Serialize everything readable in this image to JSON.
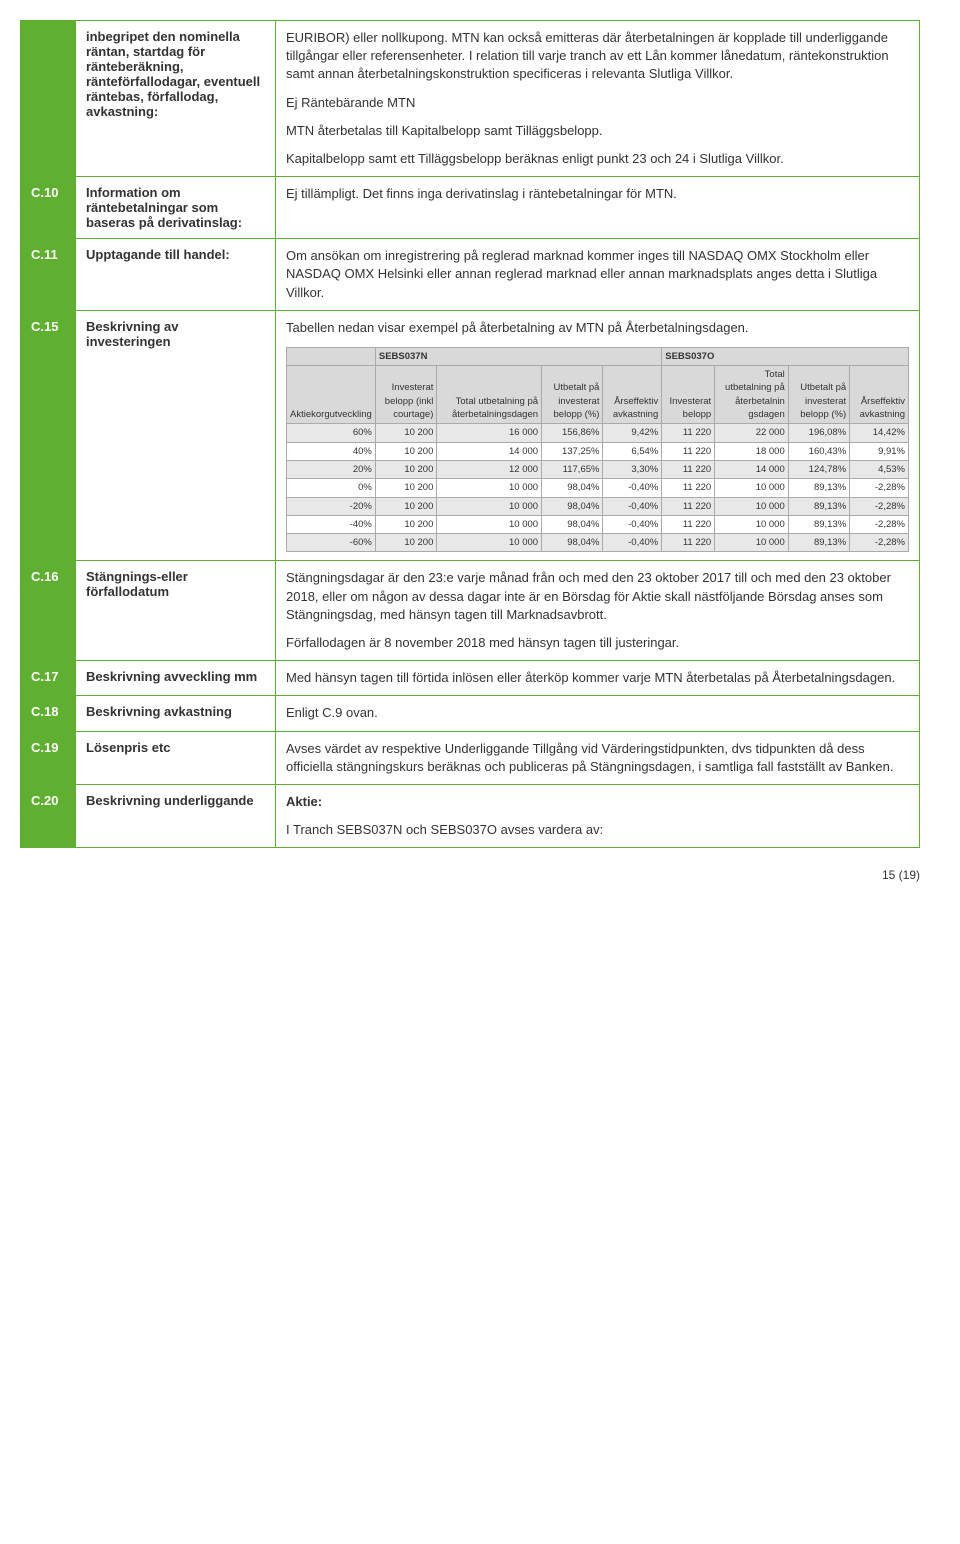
{
  "rows": {
    "first": {
      "label": "inbegripet den nominella räntan, startdag för ränteberäkning, ränteförfallodagar, eventuell räntebas, förfallodag, avkastning:",
      "p1": "EURIBOR) eller nollkupong. MTN kan också emitteras där återbetalningen är kopplade till underliggande tillgångar eller referensenheter. I relation till varje tranch av ett Lån kommer lånedatum, räntekonstruktion samt annan återbetalningskonstruktion specificeras i relevanta Slutliga Villkor.",
      "p2": "Ej Räntebärande MTN",
      "p3": "MTN återbetalas till Kapitalbelopp samt Tilläggsbelopp.",
      "p4": "Kapitalbelopp samt ett Tilläggsbelopp beräknas enligt punkt 23 och 24 i Slutliga Villkor."
    },
    "c10": {
      "id": "C.10",
      "label": "Information om räntebetalningar som baseras på derivatinslag:",
      "content": "Ej tillämpligt. Det finns inga derivatinslag i räntebetalningar för MTN."
    },
    "c11": {
      "id": "C.11",
      "label": "Upptagande till handel:",
      "content": "Om ansökan om inregistrering på reglerad marknad kommer inges till NASDAQ OMX Stockholm eller NASDAQ OMX Helsinki eller annan reglerad marknad eller annan marknadsplats anges detta i Slutliga Villkor."
    },
    "c15": {
      "id": "C.15",
      "label": "Beskrivning av investeringen",
      "p1": "Tabellen nedan visar exempel på återbetalning av MTN på Återbetalningsdagen."
    },
    "c16": {
      "id": "C.16",
      "label": "Stängnings-eller förfallodatum",
      "p1": "Stängningsdagar är den 23:e varje månad från och med den 23 oktober 2017 till och med den 23 oktober 2018, eller om någon av dessa dagar inte är en Börsdag för Aktie skall nästföljande Börsdag anses som Stängningsdag, med hänsyn tagen till Marknadsavbrott.",
      "p2": "Förfallodagen är 8 november 2018 med hänsyn tagen till justeringar."
    },
    "c17": {
      "id": "C.17",
      "label": "Beskrivning avveckling mm",
      "content": "Med hänsyn tagen till förtida inlösen eller återköp kommer varje MTN återbetalas på Återbetalningsdagen."
    },
    "c18": {
      "id": "C.18",
      "label": "Beskrivning avkastning",
      "content": "Enligt C.9 ovan."
    },
    "c19": {
      "id": "C.19",
      "label": "Lösenpris etc",
      "content": "Avses värdet av respektive Underliggande Tillgång vid Värderingstidpunkten, dvs tidpunkten då dess officiella stängningskurs beräknas och publiceras på Stängningsdagen, i samtliga fall fastställt av Banken."
    },
    "c20": {
      "id": "C.20",
      "label": "Beskrivning underliggande",
      "sub": "Aktie:",
      "p1": "I Tranch SEBS037N och SEBS037O avses vardera av:"
    }
  },
  "innerTable": {
    "group1": "SEBS037N",
    "group2": "SEBS037O",
    "h_aktie": "Aktiekorgutveckling",
    "h_inv": "Investerat belopp (inkl courtage)",
    "h_tot": "Total utbetalning på återbetalningsdagen",
    "h_utb": "Utbetalt på investerat belopp (%)",
    "h_ars": "Årseffektiv avkastning",
    "h_inv2": "Investerat belopp",
    "h_tot2": "Total utbetalning på återbetalnin gsdagen",
    "h_utb2": "Utbetalt på investerat belopp (%)",
    "h_ars2": "Årseffektiv avkastning",
    "rows": [
      {
        "a": "60%",
        "b": "10 200",
        "c": "16 000",
        "d": "156,86%",
        "e": "9,42%",
        "f": "11 220",
        "g": "22 000",
        "h": "196,08%",
        "i": "14,42%",
        "shade": true
      },
      {
        "a": "40%",
        "b": "10 200",
        "c": "14 000",
        "d": "137,25%",
        "e": "6,54%",
        "f": "11 220",
        "g": "18 000",
        "h": "160,43%",
        "i": "9,91%",
        "shade": false
      },
      {
        "a": "20%",
        "b": "10 200",
        "c": "12 000",
        "d": "117,65%",
        "e": "3,30%",
        "f": "11 220",
        "g": "14 000",
        "h": "124,78%",
        "i": "4,53%",
        "shade": true
      },
      {
        "a": "0%",
        "b": "10 200",
        "c": "10 000",
        "d": "98,04%",
        "e": "-0,40%",
        "f": "11 220",
        "g": "10 000",
        "h": "89,13%",
        "i": "-2,28%",
        "shade": false
      },
      {
        "a": "-20%",
        "b": "10 200",
        "c": "10 000",
        "d": "98,04%",
        "e": "-0,40%",
        "f": "11 220",
        "g": "10 000",
        "h": "89,13%",
        "i": "-2,28%",
        "shade": true
      },
      {
        "a": "-40%",
        "b": "10 200",
        "c": "10 000",
        "d": "98,04%",
        "e": "-0,40%",
        "f": "11 220",
        "g": "10 000",
        "h": "89,13%",
        "i": "-2,28%",
        "shade": false
      },
      {
        "a": "-60%",
        "b": "10 200",
        "c": "10 000",
        "d": "98,04%",
        "e": "-0,40%",
        "f": "11 220",
        "g": "10 000",
        "h": "89,13%",
        "i": "-2,28%",
        "shade": true
      }
    ]
  },
  "pageNum": "15 (19)"
}
